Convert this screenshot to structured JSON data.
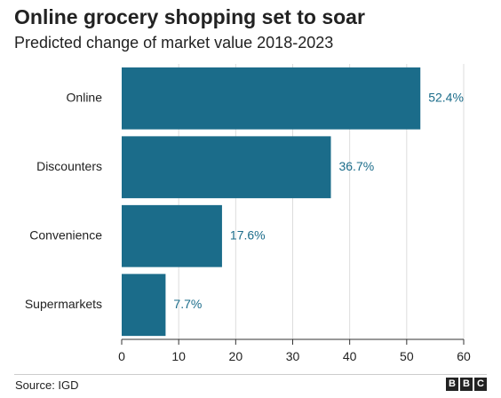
{
  "header": {
    "title": "Online grocery shopping set to soar",
    "subtitle": "Predicted change of market value 2018-2023"
  },
  "footer": {
    "source": "Source: IGD",
    "logo_letters": [
      "B",
      "B",
      "C"
    ]
  },
  "colors": {
    "bar": "#1b6c8a",
    "label": "#1b6c8a",
    "axis": "#333333",
    "grid": "#dddddd",
    "text": "#222222"
  },
  "chart_data": {
    "type": "bar",
    "orientation": "horizontal",
    "categories": [
      "Online",
      "Discounters",
      "Convenience",
      "Supermarkets"
    ],
    "values": [
      52.4,
      36.7,
      17.6,
      7.7
    ],
    "value_labels": [
      "52.4%",
      "36.7%",
      "17.6%",
      "7.7%"
    ],
    "xlim": [
      0,
      60
    ],
    "xticks": [
      0,
      10,
      20,
      30,
      40,
      50,
      60
    ],
    "grid": true,
    "title": "Online grocery shopping set to soar",
    "subtitle": "Predicted change of market value 2018-2023"
  }
}
